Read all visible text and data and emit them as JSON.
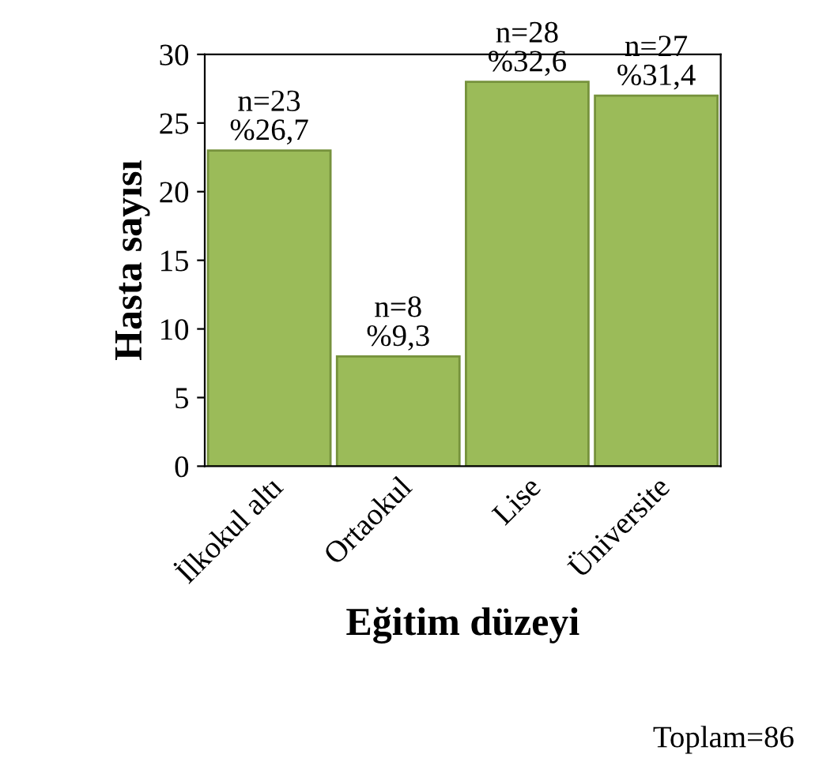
{
  "chart_data": {
    "type": "bar",
    "xlabel": "Eğitim düzeyi",
    "ylabel": "Hasta sayısı",
    "categories": [
      "İlkokul altı",
      "Ortaokul",
      "Lise",
      "Üniversite"
    ],
    "values": [
      23,
      8,
      28,
      27
    ],
    "color": "#9bbb59",
    "value_labels": [
      "n=23\n%26,7",
      "n=8\n%9,3",
      "n=28\n%32,6",
      "n=27\n%31,4"
    ],
    "ylim": [
      0,
      30
    ],
    "yticks": [
      0,
      5,
      10,
      15,
      20,
      25,
      30
    ],
    "grid": false,
    "annotations": [
      "Toplam=86"
    ]
  }
}
